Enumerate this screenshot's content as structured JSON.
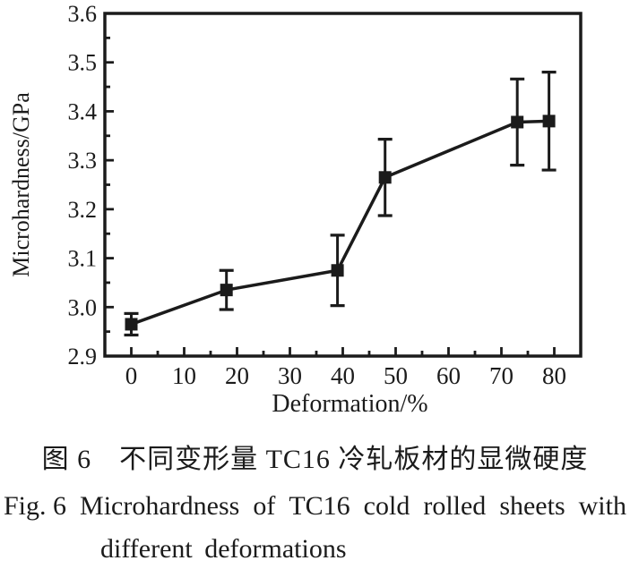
{
  "colors": {
    "ink": "#1b1b1b",
    "background": "#ffffff"
  },
  "chart_data": {
    "type": "line",
    "title": "",
    "xlabel": "Deformation/%",
    "ylabel": "Microhardness/GPa",
    "xlim": [
      -5,
      85
    ],
    "ylim": [
      2.9,
      3.6
    ],
    "x_major_ticks": [
      0,
      10,
      20,
      30,
      40,
      50,
      60,
      70,
      80
    ],
    "x_minor_ticks": [
      5,
      15,
      25,
      35,
      45,
      55,
      65,
      75
    ],
    "y_major_ticks": [
      2.9,
      3.0,
      3.1,
      3.2,
      3.3,
      3.4,
      3.5,
      3.6
    ],
    "y_minor_ticks": [
      2.95,
      3.05,
      3.15,
      3.25,
      3.35,
      3.45,
      3.55
    ],
    "grid": false,
    "legend": "none",
    "series": [
      {
        "name": "TC16 cold rolled sheet microhardness",
        "marker": "square",
        "color": "#1b1b1b",
        "points": [
          {
            "x": 0,
            "y": 2.965,
            "err": 0.022
          },
          {
            "x": 18,
            "y": 3.035,
            "err": 0.04
          },
          {
            "x": 39,
            "y": 3.075,
            "err": 0.072
          },
          {
            "x": 48,
            "y": 3.265,
            "err": 0.078
          },
          {
            "x": 73,
            "y": 3.378,
            "err": 0.088
          },
          {
            "x": 79,
            "y": 3.38,
            "err": 0.1
          }
        ]
      }
    ]
  },
  "caption": {
    "line_zh": "图 6　不同变形量 TC16 冷轧板材的显微硬度",
    "line_en_part1": "Fig. 6",
    "line_en_part2": "Microhardness",
    "line_en_part3": "of",
    "line_en_part4": "TC16",
    "line_en_part5": "cold",
    "line_en_part6": "rolled",
    "line_en_part7": "sheets",
    "line_en_part8": "with",
    "line_en_line2": "different deformations"
  }
}
